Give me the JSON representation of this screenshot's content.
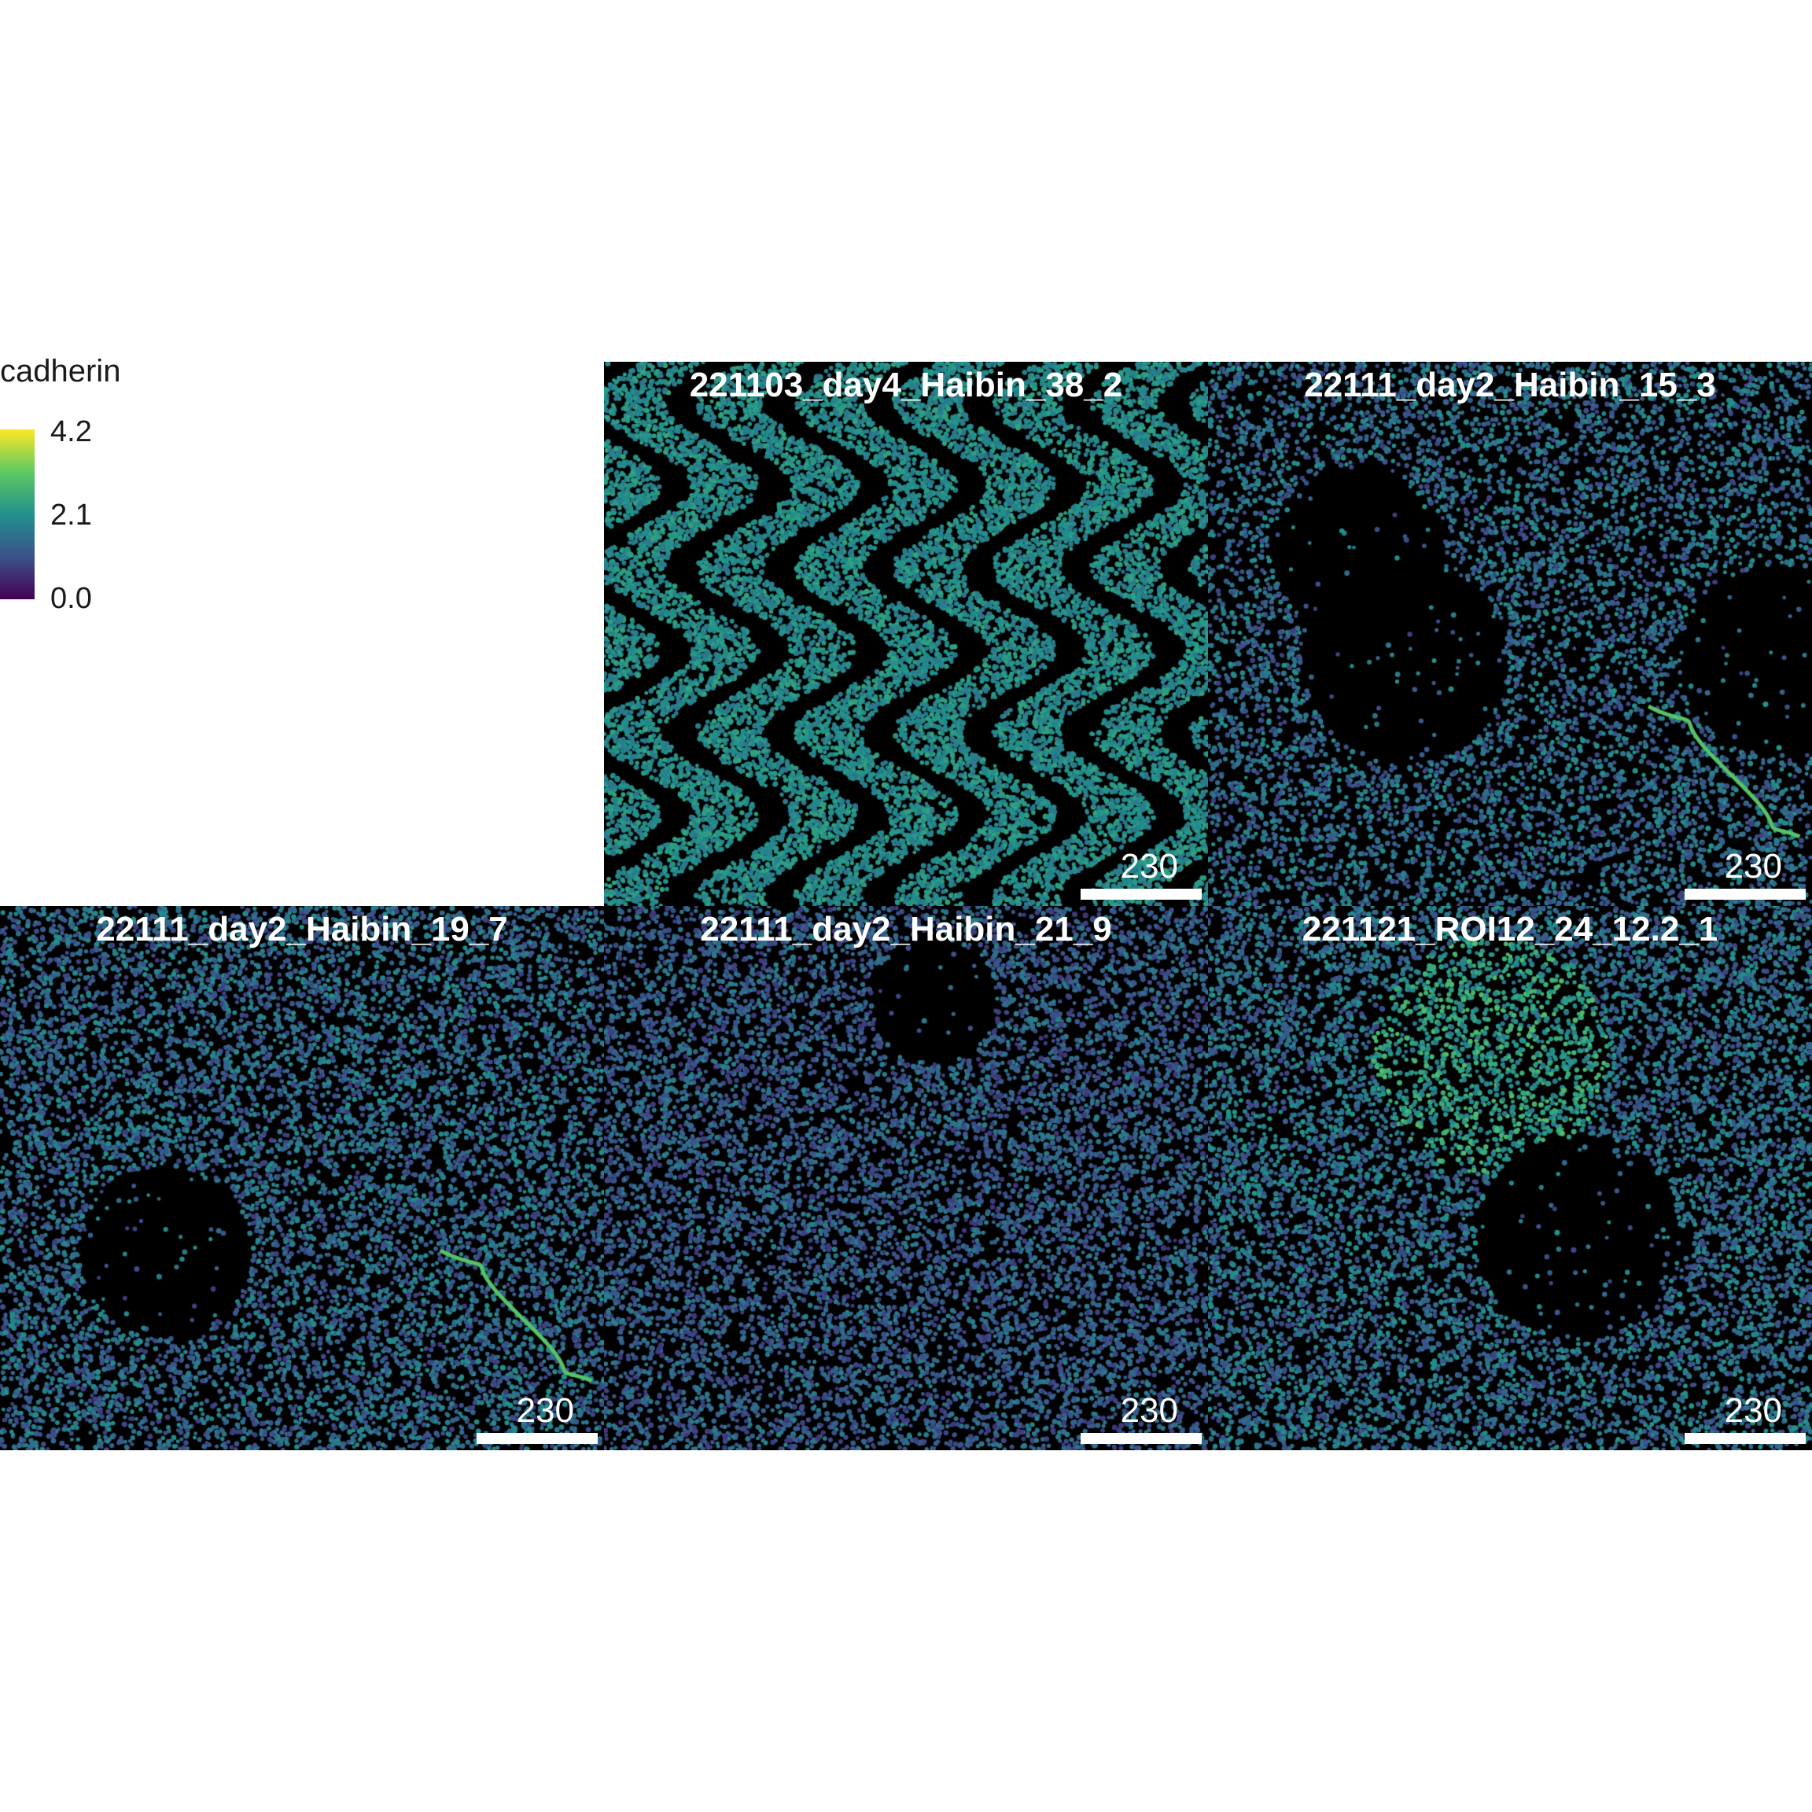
{
  "legend": {
    "title": "cadherin",
    "ticks": [
      "4.2",
      "2.1",
      "0.0"
    ],
    "colors": [
      "#440154",
      "#3b528b",
      "#21918c",
      "#5ec962",
      "#fde725"
    ]
  },
  "panels": [
    {
      "title": "221103_day4_Haibin_38_2",
      "scale_label": "230"
    },
    {
      "title": "22111_day2_Haibin_15_3",
      "scale_label": "230"
    },
    {
      "title": "22111_day2_Haibin_19_7",
      "scale_label": "230"
    },
    {
      "title": "22111_day2_Haibin_21_9",
      "scale_label": "230"
    },
    {
      "title": "221121_ROI12_24_12.2_1",
      "scale_label": "230"
    }
  ]
}
